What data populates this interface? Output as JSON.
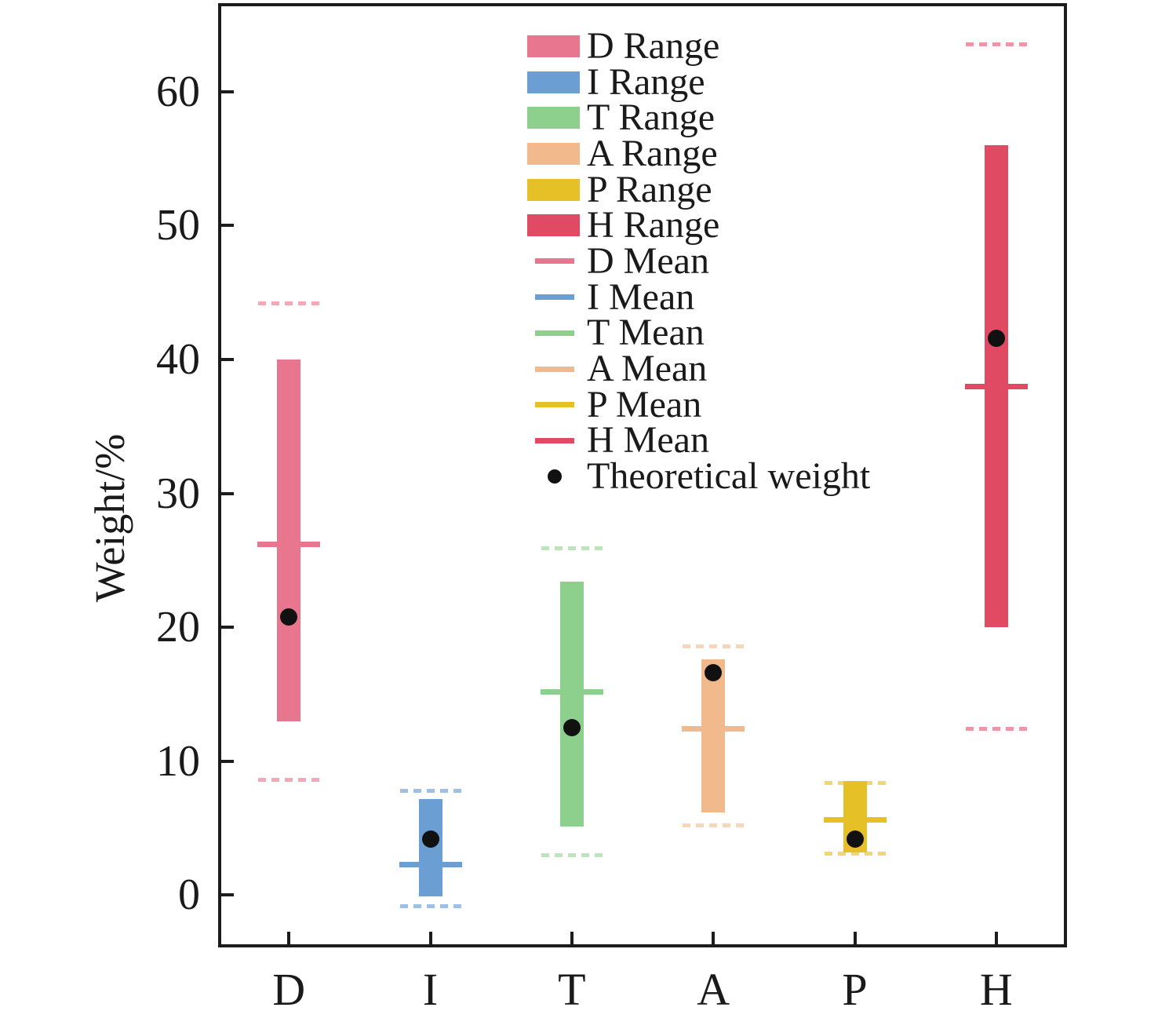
{
  "chart_data": {
    "type": "bar",
    "subtype": "range-bars-with-means-and-points",
    "title": "",
    "xlabel": "",
    "ylabel": "Weight/%",
    "ylim": [
      -3.9,
      66.6
    ],
    "yticks": [
      0,
      10,
      20,
      30,
      40,
      50,
      60
    ],
    "grid": false,
    "legend_position": "upper center-right",
    "categories": [
      "D",
      "I",
      "T",
      "A",
      "P",
      "H"
    ],
    "series": [
      {
        "name": "D",
        "color": "#E8768E",
        "dash_color": "#F5A8BA",
        "range_low": 13.0,
        "range_high": 40.0,
        "mean": 26.2,
        "dash_high": 44.2,
        "dash_low": 8.6,
        "theoretical": 20.8
      },
      {
        "name": "I",
        "color": "#6B9FD3",
        "dash_color": "#9FC0E5",
        "range_low": -0.1,
        "range_high": 7.2,
        "mean": 2.3,
        "dash_high": 7.8,
        "dash_low": -0.8,
        "theoretical": 4.2
      },
      {
        "name": "T",
        "color": "#8DCF8C",
        "dash_color": "#BEE4BC",
        "range_low": 5.1,
        "range_high": 23.4,
        "mean": 15.2,
        "dash_high": 25.9,
        "dash_low": 3.0,
        "theoretical": 12.5
      },
      {
        "name": "A",
        "color": "#F1B98C",
        "dash_color": "#F7D7B9",
        "range_low": 6.2,
        "range_high": 17.6,
        "mean": 12.4,
        "dash_high": 18.6,
        "dash_low": 5.2,
        "theoretical": 16.6
      },
      {
        "name": "P",
        "color": "#E5C127",
        "dash_color": "#EFD96E",
        "range_low": 3.2,
        "range_high": 8.5,
        "mean": 5.6,
        "dash_high": 8.4,
        "dash_low": 3.1,
        "theoretical": 4.2
      },
      {
        "name": "H",
        "color": "#E04A63",
        "dash_color": "#F095A3",
        "range_low": 20.0,
        "range_high": 56.0,
        "mean": 38.0,
        "dash_high": 63.5,
        "dash_low": 12.4,
        "theoretical": 41.6
      }
    ],
    "legend": {
      "items": [
        {
          "label": "D Range",
          "type": "box",
          "color": "#E8768E"
        },
        {
          "label": "I Range",
          "type": "box",
          "color": "#6B9FD3"
        },
        {
          "label": "T Range",
          "type": "box",
          "color": "#8DCF8C"
        },
        {
          "label": "A Range",
          "type": "box",
          "color": "#F1B98C"
        },
        {
          "label": "P Range",
          "type": "box",
          "color": "#E5C127"
        },
        {
          "label": "H Range",
          "type": "box",
          "color": "#E04A63"
        },
        {
          "label": "D Mean",
          "type": "line",
          "color": "#E8768E"
        },
        {
          "label": "I Mean",
          "type": "line",
          "color": "#6B9FD3"
        },
        {
          "label": "T Mean",
          "type": "line",
          "color": "#8DCF8C"
        },
        {
          "label": "A Mean",
          "type": "line",
          "color": "#F1B98C"
        },
        {
          "label": "P Mean",
          "type": "line",
          "color": "#E5C127"
        },
        {
          "label": "H Mean",
          "type": "line",
          "color": "#E04A63"
        },
        {
          "label": "Theoretical weight",
          "type": "dot",
          "color": "#111111"
        }
      ]
    }
  }
}
